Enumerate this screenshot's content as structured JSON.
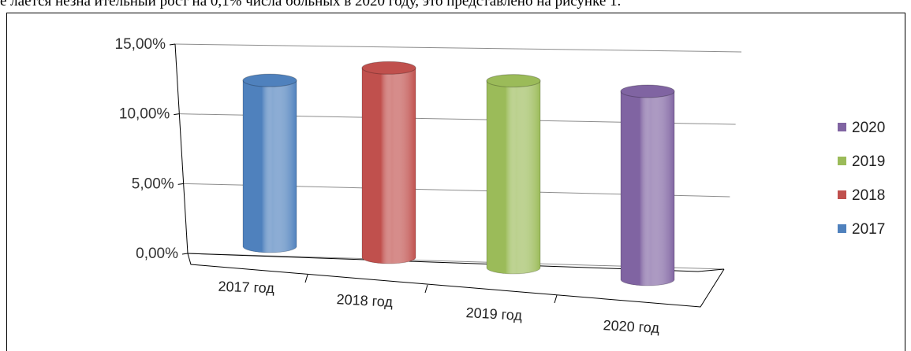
{
  "caption": "е лается незна ительный рост на 0,1% числа больных в 2020 году, это представлено на рисунке 1.",
  "chart_data": {
    "type": "bar",
    "style": "3d-cylinder",
    "categories": [
      "2017 год",
      "2018 год",
      "2019 год",
      "2020 год"
    ],
    "series": [
      {
        "name": "2017",
        "values": [
          12.7,
          null,
          null,
          null
        ],
        "color": "#4f81bd"
      },
      {
        "name": "2018",
        "values": [
          null,
          14.5,
          null,
          null
        ],
        "color": "#c0504d"
      },
      {
        "name": "2019",
        "values": [
          null,
          null,
          14.3,
          null
        ],
        "color": "#9bbb59"
      },
      {
        "name": "2020",
        "values": [
          null,
          null,
          null,
          14.4
        ],
        "color": "#8064a2"
      }
    ],
    "y_ticks": [
      "0,00%",
      "5,00%",
      "10,00%",
      "15,00%"
    ],
    "ylim": [
      0,
      15
    ],
    "grid": true,
    "legend_position": "right",
    "legend_order": [
      "2020",
      "2019",
      "2018",
      "2017"
    ]
  }
}
